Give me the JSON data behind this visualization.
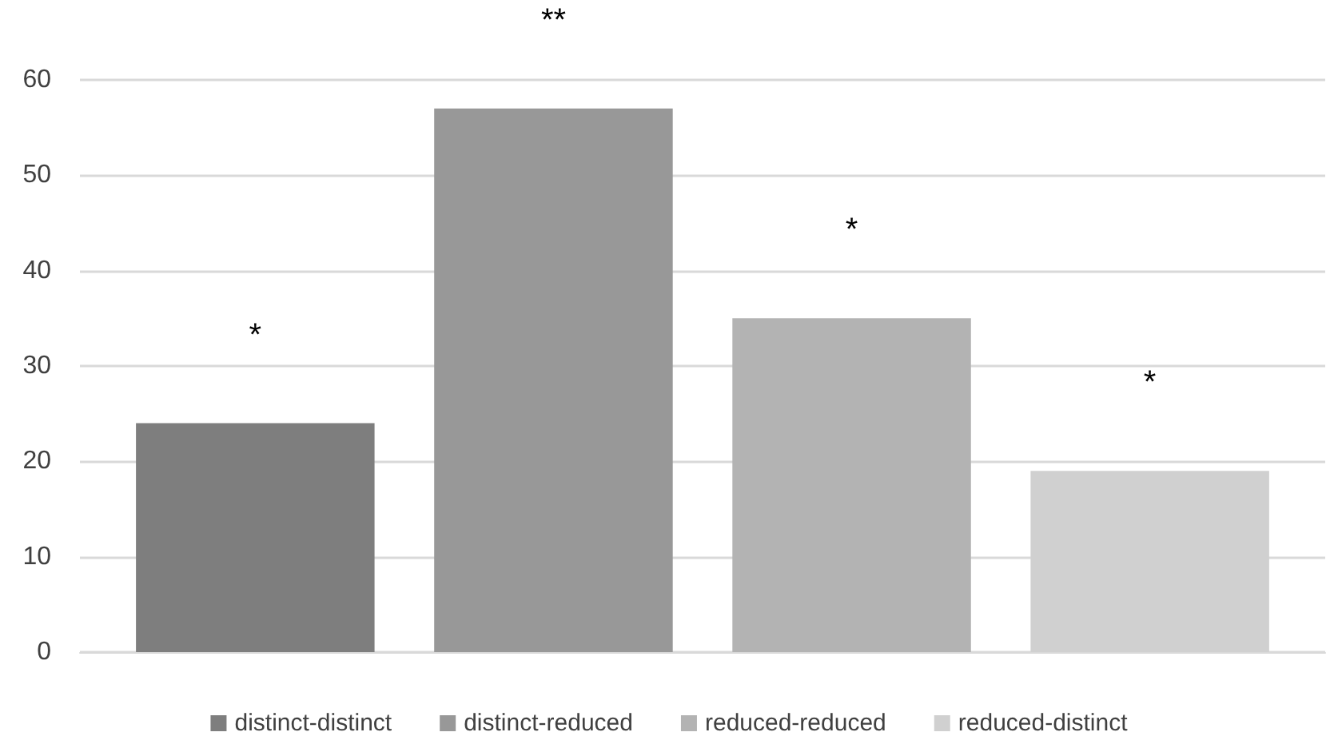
{
  "chart_data": {
    "type": "bar",
    "categories": [
      null
    ],
    "series": [
      {
        "name": "distinct-distinct",
        "color": "#7e7e7e",
        "values": [
          24
        ]
      },
      {
        "name": "distinct-reduced",
        "color": "#989898",
        "values": [
          57
        ]
      },
      {
        "name": "reduced-reduced",
        "color": "#b3b3b3",
        "values": [
          35
        ]
      },
      {
        "name": "reduced-distinct",
        "color": "#d0d0d0",
        "values": [
          19
        ]
      }
    ],
    "annotations": [
      "*",
      "**",
      "*",
      "*"
    ],
    "ylim": [
      0,
      60
    ],
    "yticks": [
      0,
      10,
      20,
      30,
      40,
      50,
      60
    ],
    "grid": "y",
    "legend": "bottom"
  }
}
